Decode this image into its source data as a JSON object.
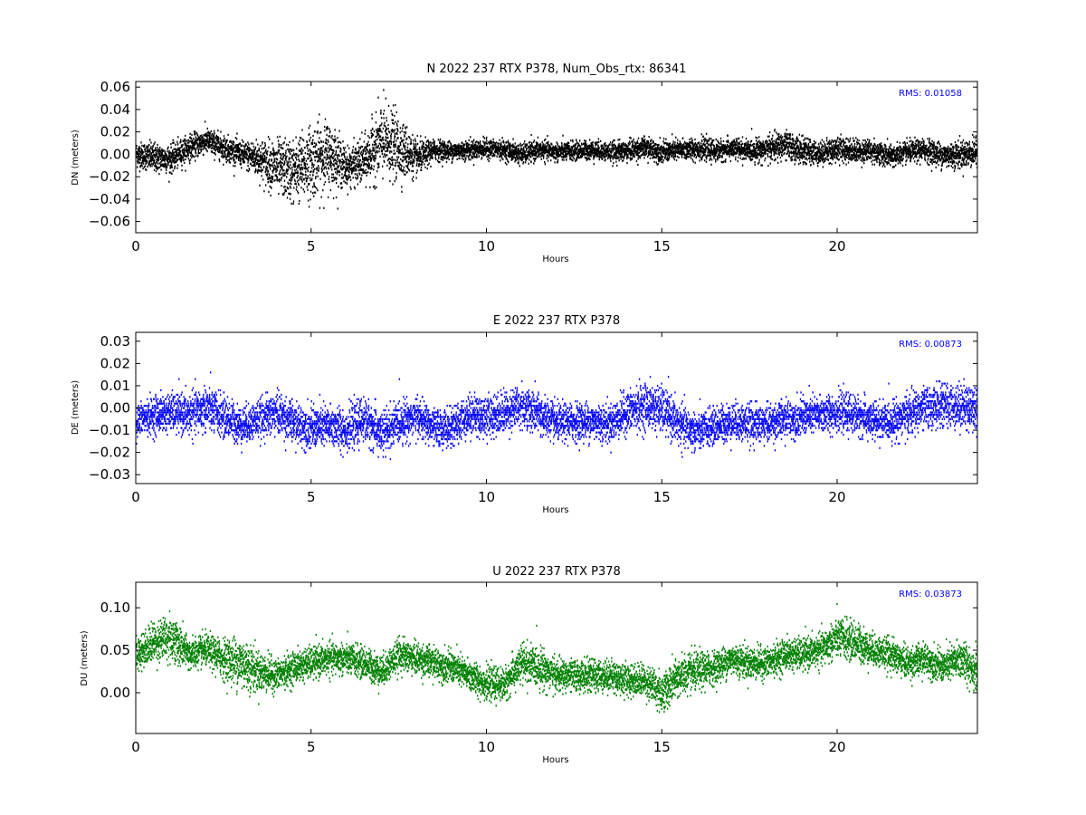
{
  "chart_data": [
    {
      "type": "scatter",
      "title": "N 2022 237 RTX  P378, Num_Obs_rtx: 86341",
      "xlabel": "Hours",
      "ylabel": "DN (meters)",
      "xlim": [
        0,
        24
      ],
      "ylim": [
        -0.07,
        0.065
      ],
      "xticks": [
        0,
        5,
        10,
        15,
        20
      ],
      "yticks": [
        -0.06,
        -0.04,
        -0.02,
        0.0,
        0.02,
        0.04,
        0.06
      ],
      "yticklabels": [
        "−0.06",
        "−0.04",
        "−0.02",
        "0.00",
        "0.02",
        "0.04",
        "0.06"
      ],
      "annotation": "RMS:  0.01058",
      "color": "#000000",
      "annotation_color": "#0000ff",
      "series": [
        {
          "x": [
            0,
            0.5,
            1,
            1.5,
            2,
            2.5,
            3,
            3.5,
            4,
            4.5,
            5,
            5.5,
            6,
            6.5,
            7,
            7.5,
            8,
            8.5,
            9,
            9.5,
            10,
            10.5,
            11,
            11.5,
            12,
            12.5,
            13,
            13.5,
            14,
            14.5,
            15,
            15.5,
            16,
            16.5,
            17,
            17.5,
            18,
            18.5,
            19,
            19.5,
            20,
            20.5,
            21,
            21.5,
            22,
            22.5,
            23,
            23.5,
            24
          ],
          "y": [
            0.0,
            -0.003,
            -0.004,
            0.006,
            0.012,
            0.006,
            0.0,
            -0.004,
            -0.012,
            -0.015,
            -0.006,
            0.0,
            -0.012,
            -0.006,
            0.012,
            0.006,
            -0.004,
            0.004,
            0.003,
            0.004,
            0.005,
            0.004,
            0.0,
            0.004,
            0.002,
            0.003,
            0.004,
            0.002,
            0.003,
            0.006,
            0.002,
            0.004,
            0.005,
            0.003,
            0.005,
            0.003,
            0.005,
            0.008,
            0.003,
            0.001,
            0.005,
            0.003,
            0.003,
            -0.002,
            0.002,
            0.004,
            -0.001,
            0.0,
            0.002
          ],
          "spread": [
            0.012,
            0.014,
            0.013,
            0.012,
            0.012,
            0.012,
            0.012,
            0.018,
            0.026,
            0.03,
            0.034,
            0.032,
            0.018,
            0.022,
            0.035,
            0.03,
            0.016,
            0.01,
            0.009,
            0.009,
            0.009,
            0.009,
            0.01,
            0.009,
            0.009,
            0.009,
            0.009,
            0.009,
            0.01,
            0.01,
            0.01,
            0.01,
            0.01,
            0.01,
            0.01,
            0.01,
            0.012,
            0.014,
            0.012,
            0.011,
            0.012,
            0.011,
            0.011,
            0.011,
            0.01,
            0.011,
            0.012,
            0.013,
            0.013
          ]
        }
      ]
    },
    {
      "type": "scatter",
      "title": "E 2022 237 RTX  P378",
      "xlabel": "Hours",
      "ylabel": "DE (meters)",
      "xlim": [
        0,
        24
      ],
      "ylim": [
        -0.034,
        0.034
      ],
      "xticks": [
        0,
        5,
        10,
        15,
        20
      ],
      "yticks": [
        -0.03,
        -0.02,
        -0.01,
        0.0,
        0.01,
        0.02,
        0.03
      ],
      "yticklabels": [
        "−0.03",
        "−0.02",
        "−0.01",
        "0.00",
        "0.01",
        "0.02",
        "0.03"
      ],
      "annotation": "RMS:  0.00873",
      "color": "#0000ff",
      "annotation_color": "#0000ff",
      "series": [
        {
          "x": [
            0,
            0.5,
            1,
            1.5,
            2,
            2.5,
            3,
            3.5,
            4,
            4.5,
            5,
            5.5,
            6,
            6.5,
            7,
            7.5,
            8,
            8.5,
            9,
            9.5,
            10,
            10.5,
            11,
            11.5,
            12,
            12.5,
            13,
            13.5,
            14,
            14.5,
            15,
            15.5,
            16,
            16.5,
            17,
            17.5,
            18,
            18.5,
            19,
            19.5,
            20,
            20.5,
            21,
            21.5,
            22,
            22.5,
            23,
            23.5,
            24
          ],
          "y": [
            -0.006,
            -0.003,
            -0.002,
            -0.003,
            0.0,
            -0.004,
            -0.008,
            -0.005,
            -0.002,
            -0.007,
            -0.009,
            -0.008,
            -0.01,
            -0.005,
            -0.012,
            -0.006,
            -0.004,
            -0.009,
            -0.009,
            -0.003,
            -0.004,
            -0.002,
            0.001,
            -0.003,
            -0.007,
            -0.006,
            -0.006,
            -0.007,
            -0.002,
            0.001,
            -0.001,
            -0.008,
            -0.011,
            -0.008,
            -0.006,
            -0.007,
            -0.007,
            -0.005,
            -0.004,
            -0.003,
            -0.002,
            -0.003,
            -0.006,
            -0.006,
            -0.003,
            0.0,
            0.001,
            0.001,
            0.0
          ],
          "spread": [
            0.008,
            0.009,
            0.009,
            0.01,
            0.011,
            0.01,
            0.009,
            0.009,
            0.01,
            0.01,
            0.01,
            0.01,
            0.01,
            0.01,
            0.011,
            0.01,
            0.009,
            0.009,
            0.009,
            0.01,
            0.01,
            0.01,
            0.01,
            0.01,
            0.009,
            0.009,
            0.009,
            0.009,
            0.01,
            0.011,
            0.011,
            0.01,
            0.009,
            0.009,
            0.009,
            0.009,
            0.009,
            0.009,
            0.009,
            0.009,
            0.009,
            0.009,
            0.009,
            0.009,
            0.01,
            0.01,
            0.01,
            0.011,
            0.011
          ]
        }
      ]
    },
    {
      "type": "scatter",
      "title": "U 2022 237 RTX  P378",
      "xlabel": "Hours",
      "ylabel": "DU (meters)",
      "xlim": [
        0,
        24
      ],
      "ylim": [
        -0.048,
        0.13
      ],
      "xticks": [
        0,
        5,
        10,
        15,
        20
      ],
      "yticks": [
        0.0,
        0.05,
        0.1
      ],
      "yticklabels": [
        "0.00",
        "0.05",
        "0.10"
      ],
      "annotation": "RMS:  0.03873",
      "color": "#008000",
      "annotation_color": "#0000ff",
      "series": [
        {
          "x": [
            0,
            0.5,
            1,
            1.5,
            2,
            2.5,
            3,
            3.5,
            4,
            4.5,
            5,
            5.5,
            6,
            6.5,
            7,
            7.5,
            8,
            8.5,
            9,
            9.5,
            10,
            10.5,
            11,
            11.5,
            12,
            12.5,
            13,
            13.5,
            14,
            14.5,
            15,
            15.5,
            16,
            16.5,
            17,
            17.5,
            18,
            18.5,
            19,
            19.5,
            20,
            20.5,
            21,
            21.5,
            22,
            22.5,
            23,
            23.5,
            24
          ],
          "y": [
            0.045,
            0.06,
            0.065,
            0.045,
            0.05,
            0.04,
            0.035,
            0.025,
            0.02,
            0.03,
            0.035,
            0.04,
            0.04,
            0.035,
            0.025,
            0.045,
            0.04,
            0.035,
            0.03,
            0.02,
            0.01,
            0.01,
            0.035,
            0.03,
            0.02,
            0.02,
            0.02,
            0.02,
            0.015,
            0.015,
            0.0,
            0.02,
            0.025,
            0.03,
            0.04,
            0.035,
            0.035,
            0.045,
            0.045,
            0.05,
            0.065,
            0.06,
            0.05,
            0.045,
            0.035,
            0.04,
            0.03,
            0.04,
            0.025
          ],
          "spread": [
            0.02,
            0.025,
            0.03,
            0.02,
            0.02,
            0.025,
            0.035,
            0.025,
            0.02,
            0.02,
            0.02,
            0.02,
            0.02,
            0.02,
            0.02,
            0.02,
            0.02,
            0.02,
            0.02,
            0.02,
            0.02,
            0.02,
            0.025,
            0.025,
            0.02,
            0.02,
            0.02,
            0.02,
            0.02,
            0.02,
            0.025,
            0.025,
            0.025,
            0.02,
            0.02,
            0.02,
            0.02,
            0.02,
            0.02,
            0.02,
            0.025,
            0.025,
            0.02,
            0.02,
            0.02,
            0.02,
            0.02,
            0.025,
            0.025
          ]
        }
      ]
    }
  ]
}
